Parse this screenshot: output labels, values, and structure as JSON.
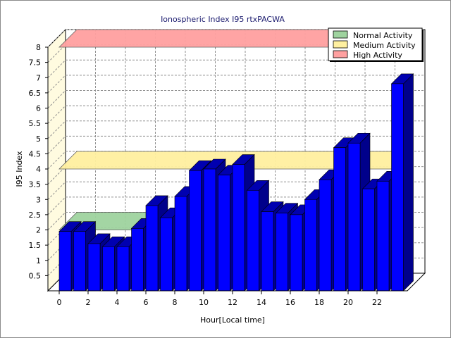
{
  "chart_data": {
    "type": "bar",
    "title": "Ionospheric Index I95 rtxPACWA",
    "xlabel": "Hour[Local time]",
    "ylabel": "I95 Index",
    "ylim": [
      0,
      8
    ],
    "yticks": [
      "0.5",
      "1",
      "1.5",
      "2",
      "2.5",
      "3",
      "3.5",
      "4",
      "4.5",
      "5",
      "5.5",
      "6",
      "6.5",
      "7",
      "7.5",
      "8"
    ],
    "xticks": [
      "0",
      "2",
      "4",
      "6",
      "8",
      "10",
      "12",
      "14",
      "16",
      "18",
      "20",
      "22"
    ],
    "hours": [
      0,
      1,
      2,
      3,
      4,
      5,
      6,
      7,
      8,
      9,
      10,
      11,
      12,
      13,
      14,
      15,
      16,
      17,
      18,
      19,
      20,
      21,
      22,
      23
    ],
    "values": [
      1.95,
      1.95,
      1.55,
      1.45,
      1.45,
      2.05,
      2.8,
      2.4,
      3.1,
      3.95,
      4.0,
      3.8,
      4.15,
      3.3,
      2.6,
      2.55,
      2.5,
      3.0,
      3.65,
      4.7,
      4.85,
      3.35,
      3.6,
      6.8
    ],
    "bar_color": "#0000ff",
    "bands": [
      {
        "name": "Normal Activity",
        "from": 0,
        "to": 2,
        "color": "#9fd39f"
      },
      {
        "name": "Medium Activity",
        "from": 2,
        "to": 4,
        "color": "#fff0a0"
      },
      {
        "name": "High Activity",
        "from": 4,
        "to": 8,
        "color": "#ffa0a0"
      }
    ],
    "grid": true,
    "legend_position": "top-right"
  }
}
